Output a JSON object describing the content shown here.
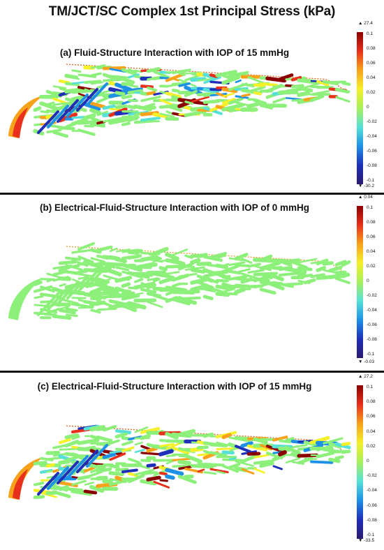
{
  "title": "TM/JCT/SC Complex 1st Principal Stress (kPa)",
  "panels": [
    {
      "title": "(a) Fluid-Structure Interaction with IOP of 15 mmHg",
      "max": "▲ 27.4",
      "min": "▼ -30.2",
      "ticks": [
        "0.1",
        "0.08",
        "0.06",
        "0.04",
        "0.02",
        "0",
        "-0.02",
        "-0.04",
        "-0.06",
        "-0.08",
        "-0.1"
      ],
      "mode": "stress"
    },
    {
      "title": "(b) Electrical-Fluid-Structure Interaction with IOP of 0 mmHg",
      "max": "▲ 0.04",
      "min": "▼ -0.03",
      "ticks": [
        "0.1",
        "0.08",
        "0.06",
        "0.04",
        "0.02",
        "0",
        "-0.02",
        "-0.04",
        "-0.06",
        "-0.08",
        "-0.1"
      ],
      "mode": "uniform"
    },
    {
      "title": "(c) Electrical-Fluid-Structure Interaction with IOP of 15 mmHg",
      "max": "▲ 27.2",
      "min": "▼ -33.5",
      "ticks": [
        "0.1",
        "0.08",
        "0.06",
        "0.04",
        "0.02",
        "0",
        "-0.02",
        "-0.04",
        "-0.06",
        "-0.08",
        "-0.1"
      ],
      "mode": "stress"
    }
  ],
  "colors": {
    "uniform": "#8cf07a",
    "jet": [
      "#8b0000",
      "#e8301c",
      "#f7a21a",
      "#f4f02a",
      "#a7f05a",
      "#56e0d8",
      "#1e90e6",
      "#1f2fb8",
      "#2a1a6e"
    ]
  }
}
